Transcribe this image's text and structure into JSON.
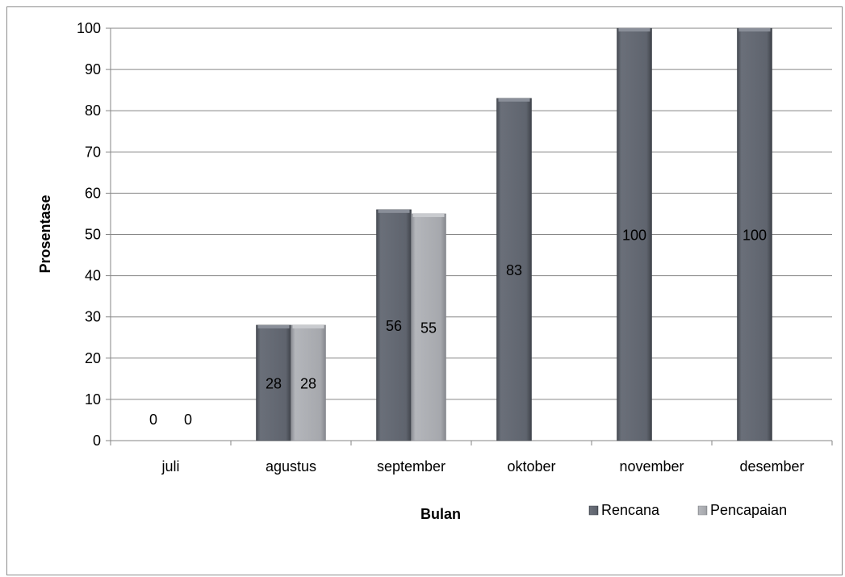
{
  "chart_data": {
    "type": "bar",
    "title": "",
    "xlabel": "Bulan",
    "ylabel": "Prosentase",
    "ylim": [
      0,
      100
    ],
    "ytick_step": 10,
    "categories": [
      "juli",
      "agustus",
      "september",
      "oktober",
      "november",
      "desember"
    ],
    "series": [
      {
        "name": "Rencana",
        "color": "#5f646e",
        "values": [
          0,
          28,
          56,
          83,
          100,
          100
        ]
      },
      {
        "name": "Pencapaian",
        "color": "#a6a8ad",
        "values": [
          0,
          28,
          55,
          null,
          null,
          null
        ]
      }
    ],
    "data_labels": true,
    "grid": true,
    "legend_position": "bottom-right"
  }
}
